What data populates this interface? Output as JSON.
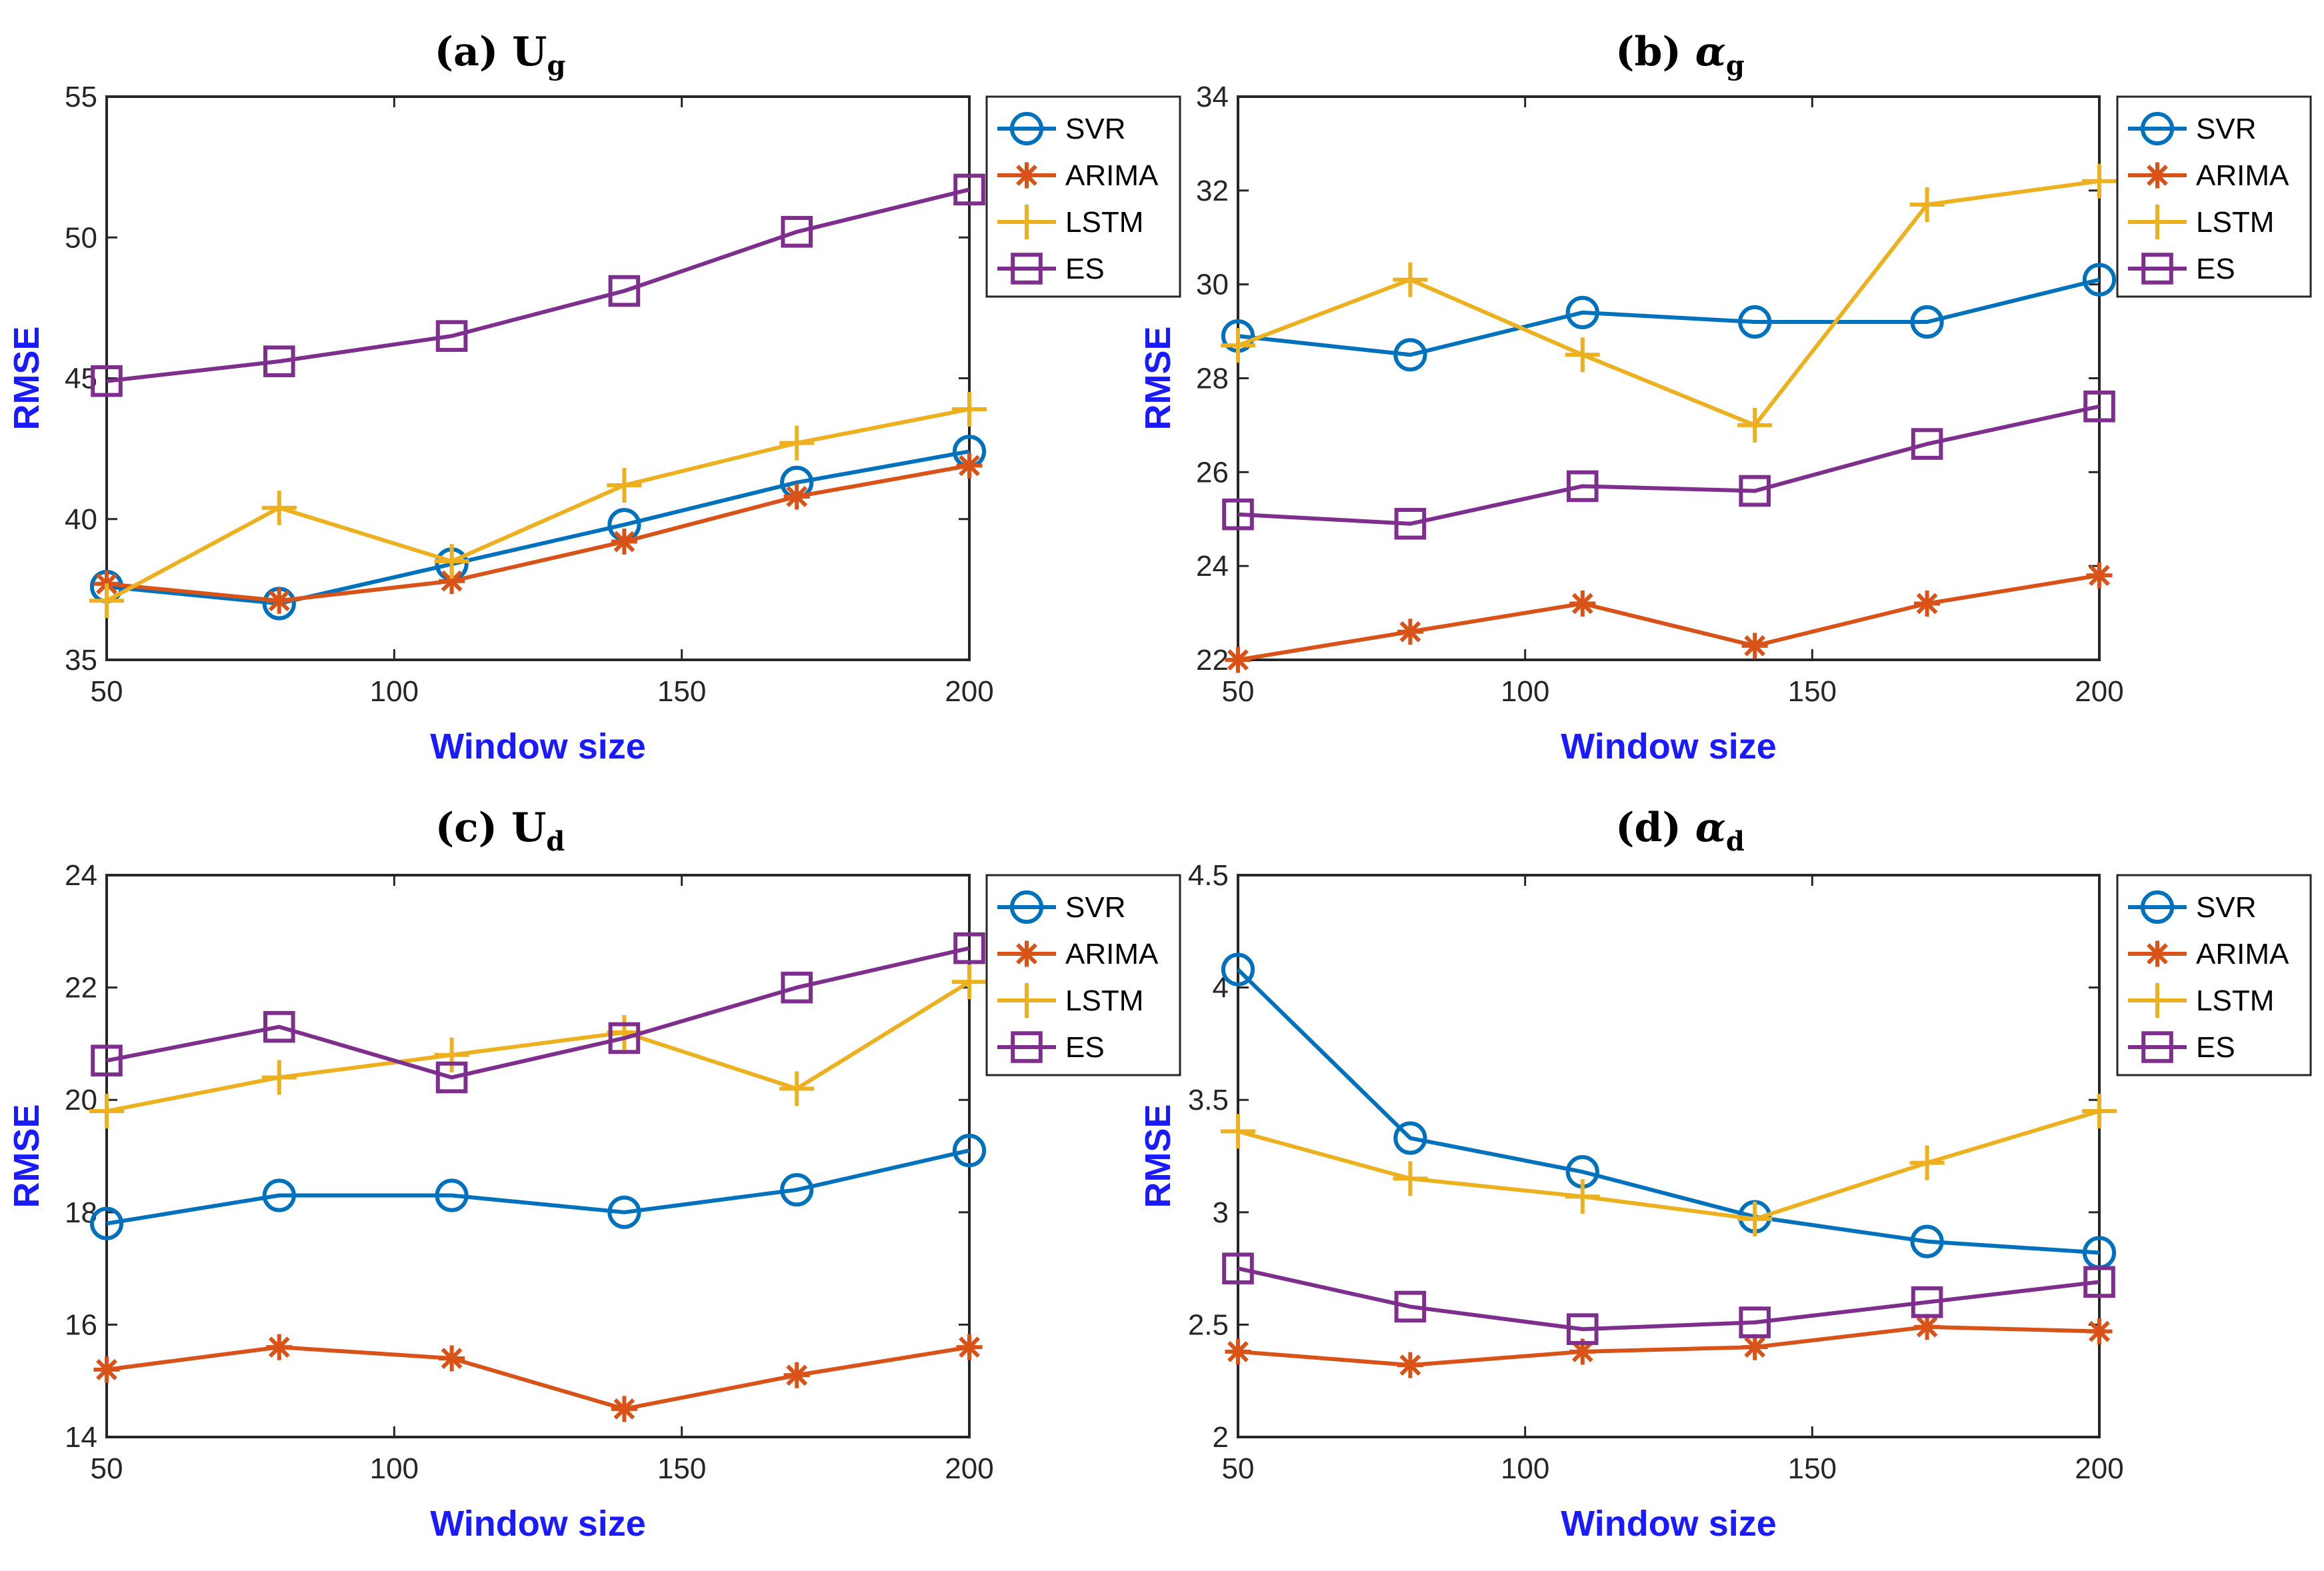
{
  "series_style": {
    "SVR": {
      "color": "#0072BD",
      "marker": "circle"
    },
    "ARIMA": {
      "color": "#D95319",
      "marker": "asterisk"
    },
    "LSTM": {
      "color": "#EDB120",
      "marker": "plus"
    },
    "ES": {
      "color": "#7E2F8E",
      "marker": "square"
    }
  },
  "chart_data": [
    {
      "type": "line",
      "title_prefix": "(a)",
      "title_symbol": "U",
      "title_subscript": "g",
      "xlabel": "Window size",
      "ylabel": "RMSE",
      "x": [
        50,
        80,
        110,
        140,
        170,
        200
      ],
      "xlim": [
        50,
        200
      ],
      "ylim": [
        35,
        55
      ],
      "xticks": [
        "50",
        "100",
        "150",
        "200"
      ],
      "yticks": [
        "35",
        "40",
        "45",
        "50",
        "55"
      ],
      "legend": [
        "SVR",
        "ARIMA",
        "LSTM",
        "ES"
      ],
      "series": [
        {
          "name": "SVR",
          "values": [
            37.6,
            37.0,
            38.4,
            39.8,
            41.3,
            42.4
          ]
        },
        {
          "name": "ARIMA",
          "values": [
            37.7,
            37.1,
            37.8,
            39.2,
            40.8,
            41.9
          ]
        },
        {
          "name": "LSTM",
          "values": [
            37.1,
            40.4,
            38.5,
            41.2,
            42.7,
            43.9
          ]
        },
        {
          "name": "ES",
          "values": [
            44.9,
            45.6,
            46.5,
            48.1,
            50.2,
            51.7
          ]
        }
      ]
    },
    {
      "type": "line",
      "title_prefix": "(b)",
      "title_symbol": "α",
      "title_subscript": "g",
      "xlabel": "Window size",
      "ylabel": "RMSE",
      "x": [
        50,
        80,
        110,
        140,
        170,
        200
      ],
      "xlim": [
        50,
        200
      ],
      "ylim": [
        22,
        34
      ],
      "xticks": [
        "50",
        "100",
        "150",
        "200"
      ],
      "yticks": [
        "22",
        "24",
        "26",
        "28",
        "30",
        "32",
        "34"
      ],
      "legend": [
        "SVR",
        "ARIMA",
        "LSTM",
        "ES"
      ],
      "series": [
        {
          "name": "SVR",
          "values": [
            28.9,
            28.5,
            29.4,
            29.2,
            29.2,
            30.1
          ]
        },
        {
          "name": "ARIMA",
          "values": [
            22.0,
            22.6,
            23.2,
            22.3,
            23.2,
            23.8
          ]
        },
        {
          "name": "LSTM",
          "values": [
            28.7,
            30.1,
            28.5,
            27.0,
            31.7,
            32.2
          ]
        },
        {
          "name": "ES",
          "values": [
            25.1,
            24.9,
            25.7,
            25.6,
            26.6,
            27.4
          ]
        }
      ]
    },
    {
      "type": "line",
      "title_prefix": "(c)",
      "title_symbol": "U",
      "title_subscript": "d",
      "xlabel": "Window size",
      "ylabel": "RMSE",
      "x": [
        50,
        80,
        110,
        140,
        170,
        200
      ],
      "xlim": [
        50,
        200
      ],
      "ylim": [
        14,
        24
      ],
      "xticks": [
        "50",
        "100",
        "150",
        "200"
      ],
      "yticks": [
        "14",
        "16",
        "18",
        "20",
        "22",
        "24"
      ],
      "legend": [
        "SVR",
        "ARIMA",
        "LSTM",
        "ES"
      ],
      "series": [
        {
          "name": "SVR",
          "values": [
            17.8,
            18.3,
            18.3,
            18.0,
            18.4,
            19.1
          ]
        },
        {
          "name": "ARIMA",
          "values": [
            15.2,
            15.6,
            15.4,
            14.5,
            15.1,
            15.6
          ]
        },
        {
          "name": "LSTM",
          "values": [
            19.8,
            20.4,
            20.8,
            21.2,
            20.2,
            22.1
          ]
        },
        {
          "name": "ES",
          "values": [
            20.7,
            21.3,
            20.4,
            21.1,
            22.0,
            22.7
          ]
        }
      ]
    },
    {
      "type": "line",
      "title_prefix": "(d)",
      "title_symbol": "α",
      "title_subscript": "d",
      "xlabel": "Window size",
      "ylabel": "RMSE",
      "x": [
        50,
        80,
        110,
        140,
        170,
        200
      ],
      "xlim": [
        50,
        200
      ],
      "ylim": [
        2,
        4.5
      ],
      "xticks": [
        "50",
        "100",
        "150",
        "200"
      ],
      "yticks": [
        "2",
        "2.5",
        "3",
        "3.5",
        "4",
        "4.5"
      ],
      "legend": [
        "SVR",
        "ARIMA",
        "LSTM",
        "ES"
      ],
      "series": [
        {
          "name": "SVR",
          "values": [
            4.08,
            3.33,
            3.18,
            2.98,
            2.87,
            2.82
          ]
        },
        {
          "name": "ARIMA",
          "values": [
            2.38,
            2.32,
            2.38,
            2.4,
            2.49,
            2.47
          ]
        },
        {
          "name": "LSTM",
          "values": [
            3.36,
            3.15,
            3.07,
            2.97,
            3.22,
            3.45
          ]
        },
        {
          "name": "ES",
          "values": [
            2.75,
            2.58,
            2.48,
            2.51,
            2.6,
            2.69
          ]
        }
      ]
    }
  ]
}
